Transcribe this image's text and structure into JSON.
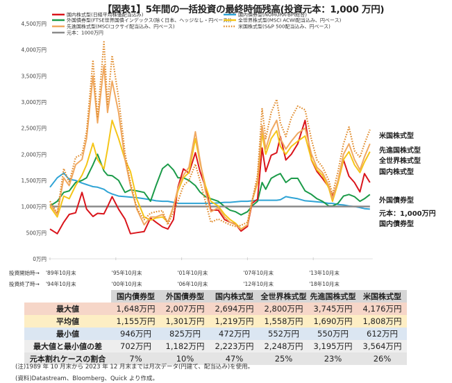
{
  "title": "【図表1】5年間の一括投資の最終時価残高(投資元本：1,000 万円)",
  "chart_data": {
    "type": "line",
    "title": "【図表1】5年間の一括投資の最終時価残高(投資元本：1,000 万円)",
    "ylabel": "",
    "ylim": [
      0,
      4500
    ],
    "yticks": [
      0,
      500,
      1000,
      1500,
      2000,
      2500,
      3000,
      3500,
      4000,
      4500
    ],
    "ytick_labels": [
      "0万円",
      "500万円",
      "1,000万円",
      "1,500万円",
      "2,000万円",
      "2,500万円",
      "3,000万円",
      "3,500万円",
      "4,000万円",
      "4,500万円"
    ],
    "grid": false,
    "legend_placement": "top",
    "x_row_labels": {
      "start": "投資開始時→",
      "end": "投資終了時→"
    },
    "xticks": [
      "1989-10",
      "1995-10",
      "2001-10",
      "2007-10",
      "2013-10"
    ],
    "xtick_labels_start": [
      "'89年10月末",
      "'95年10月末",
      "'01年10月末",
      "'07年10月末",
      "'13年10月末"
    ],
    "xtick_labels_end": [
      "'94年10月末",
      "'00年10月末",
      "'06年10月末",
      "'12年10月末",
      "'18年10月末"
    ],
    "x": [
      "1989-10",
      "1990-06",
      "1991-01",
      "1991-07",
      "1992-02",
      "1992-09",
      "1993-02",
      "1993-09",
      "1994-02",
      "1994-09",
      "1995-01",
      "1995-06",
      "1996-01",
      "1996-08",
      "1997-02",
      "1997-09",
      "1998-05",
      "1998-12",
      "1999-06",
      "2000-01",
      "2000-07",
      "2001-01",
      "2001-06",
      "2001-12",
      "2002-06",
      "2003-01",
      "2003-06",
      "2003-12",
      "2004-06",
      "2005-02",
      "2005-09",
      "2006-03",
      "2006-09",
      "2007-03",
      "2007-10",
      "2008-03",
      "2008-09",
      "2009-02",
      "2009-06",
      "2009-12",
      "2010-06",
      "2010-10",
      "2011-04",
      "2011-10",
      "2012-05",
      "2013-01",
      "2013-08",
      "2014-02",
      "2014-08",
      "2015-03",
      "2015-07",
      "2016-01",
      "2016-07",
      "2017-01",
      "2017-07",
      "2018-01",
      "2018-06",
      "2018-12"
    ],
    "series": [
      {
        "name": "国内債券型(NOMURA-BPI総合)",
        "end_label": "国内債券型",
        "color": "#2ea3d5",
        "style": "solid",
        "values": [
          1370,
          1550,
          1640,
          1520,
          1500,
          1450,
          1420,
          1380,
          1370,
          1330,
          1280,
          1240,
          1200,
          1190,
          1180,
          1170,
          1150,
          1130,
          1110,
          1100,
          1100,
          1080,
          1060,
          1060,
          1060,
          1060,
          1060,
          1060,
          1060,
          1070,
          1080,
          1080,
          1090,
          1100,
          1100,
          1110,
          1120,
          1120,
          1120,
          1120,
          1120,
          1130,
          1190,
          1170,
          1150,
          1110,
          1100,
          1090,
          1080,
          1060,
          1060,
          1040,
          1030,
          1010,
          1000,
          980,
          960,
          950
        ]
      },
      {
        "name": "外国債券型(FTSE世界国債インデックス(除く日本、ヘッジなし・円ベース))",
        "end_label": "外国債券型",
        "color": "#1a9a48",
        "style": "solid",
        "values": [
          1010,
          1100,
          1270,
          1300,
          1460,
          1500,
          1550,
          1800,
          2000,
          1680,
          1600,
          1590,
          1500,
          1270,
          1320,
          1300,
          1270,
          1100,
          1400,
          1725,
          1810,
          1700,
          1550,
          1550,
          1500,
          1400,
          1280,
          1190,
          1150,
          1100,
          1000,
          930,
          900,
          840,
          900,
          1010,
          1100,
          1460,
          1330,
          1540,
          1600,
          1630,
          1460,
          1540,
          1540,
          1300,
          1230,
          1150,
          1100,
          1010,
          1010,
          1060,
          1200,
          1230,
          1190,
          1100,
          1150,
          1230
        ]
      },
      {
        "name": "国内株式型(日経平均株価配当込み)",
        "end_label": "国内株式型",
        "color": "#d9141b",
        "style": "solid",
        "values": [
          570,
          480,
          700,
          850,
          880,
          1270,
          950,
          810,
          870,
          860,
          1000,
          1190,
          950,
          760,
          480,
          500,
          520,
          780,
          700,
          610,
          570,
          750,
          1370,
          1720,
          1640,
          2030,
          1680,
          1370,
          930,
          930,
          750,
          700,
          660,
          530,
          620,
          1060,
          1140,
          2120,
          1670,
          1980,
          2030,
          2340,
          1890,
          2000,
          2200,
          2650,
          1890,
          1670,
          1540,
          1370,
          1190,
          1460,
          1890,
          1580,
          1460,
          1280,
          1630,
          1460
        ]
      },
      {
        "name": "全世界株式型(MSCI ACWI配当込み、円ベース)",
        "end_label": "全世界株式型",
        "color": "#f5c518",
        "style": "solid",
        "values": [
          1000,
          800,
          1200,
          1150,
          1400,
          1600,
          1800,
          2210,
          1900,
          1720,
          2100,
          2650,
          2300,
          1900,
          1670,
          1140,
          800,
          740,
          780,
          800,
          700,
          1000,
          1300,
          1550,
          1650,
          2300,
          1850,
          1400,
          1100,
          1010,
          850,
          750,
          680,
          570,
          650,
          1100,
          1450,
          2400,
          2000,
          2300,
          2450,
          2150,
          2000,
          2150,
          2250,
          2350,
          1900,
          1700,
          1600,
          1350,
          1100,
          1450,
          1900,
          2050,
          1800,
          1650,
          1850,
          2050
        ]
      },
      {
        "name": "先進国株式型(MSCIコクサイ配当込み、円ベース)",
        "end_label": "先進国株式型",
        "color": "#f0a860",
        "style": "solid",
        "values": [
          1050,
          850,
          1550,
          1400,
          1800,
          1900,
          2300,
          3500,
          2600,
          3700,
          2800,
          3400,
          2800,
          1900,
          1400,
          950,
          650,
          800,
          800,
          850,
          700,
          1000,
          1350,
          1600,
          1750,
          2430,
          1900,
          1300,
          900,
          980,
          800,
          700,
          650,
          560,
          650,
          1100,
          1500,
          2550,
          2100,
          2450,
          2650,
          2300,
          2100,
          2250,
          2400,
          2500,
          2000,
          1750,
          1650,
          1400,
          1150,
          1500,
          2000,
          2200,
          1900,
          1700,
          1950,
          2200
        ]
      },
      {
        "name": "米国株式型(S&P 500配当込み、円ベース)",
        "end_label": "米国株式型",
        "color": "#e08a2a",
        "style": "dotted",
        "values": [
          1100,
          875,
          1725,
          1460,
          1940,
          2000,
          2430,
          3800,
          2700,
          4150,
          2960,
          3890,
          3080,
          2030,
          1460,
          970,
          750,
          875,
          900,
          920,
          650,
          900,
          1100,
          1400,
          1500,
          1810,
          1500,
          1100,
          700,
          760,
          700,
          650,
          620,
          640,
          700,
          1100,
          1600,
          2870,
          2300,
          2800,
          3050,
          2600,
          2340,
          2700,
          2920,
          2850,
          2280,
          1890,
          1760,
          1500,
          1230,
          1670,
          2200,
          2520,
          2070,
          1940,
          2200,
          2470
        ]
      }
    ],
    "baseline": {
      "name": "元本：1000万円",
      "end_label": "元本：1,000万円",
      "value": 1000,
      "color": "#8a8a8a"
    }
  },
  "table": {
    "columns": [
      "国内債券型",
      "外国債券型",
      "国内株式型",
      "全世界株式型",
      "先進国株式型",
      "米国株式型"
    ],
    "rows": [
      {
        "label": "最大値",
        "values": [
          "1,648万円",
          "2,007万円",
          "2,694万円",
          "2,800万円",
          "3,745万円",
          "4,176万円"
        ]
      },
      {
        "label": "平均値",
        "values": [
          "1,155万円",
          "1,301万円",
          "1,219万円",
          "1,558万円",
          "1,690万円",
          "1,808万円"
        ]
      },
      {
        "label": "最小値",
        "values": [
          "946万円",
          "825万円",
          "472万円",
          "552万円",
          "550万円",
          "612万円"
        ]
      },
      {
        "label": "最大値と最小値の差",
        "values": [
          "702万円",
          "1,182万円",
          "2,223万円",
          "2,248万円",
          "3,195万円",
          "3,564万円"
        ]
      },
      {
        "label": "元本割れケースの割合",
        "values": [
          "7%",
          "10%",
          "47%",
          "25%",
          "23%",
          "26%"
        ]
      }
    ]
  },
  "notes": {
    "note": "(注)1989 年 10 月末から 2023 年 12 月末までは月次データ(円建て、配当込み)を使用。",
    "source": "(資料)Datastream、Bloomberg、Quick より作成。"
  }
}
